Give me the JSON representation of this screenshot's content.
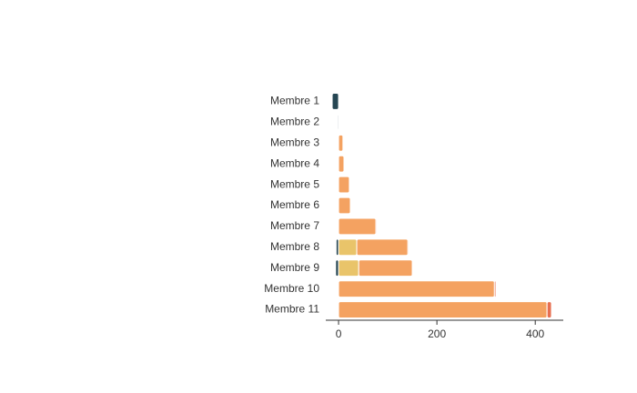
{
  "chart_data": {
    "type": "bar",
    "orientation": "horizontal",
    "stacked": true,
    "categories": [
      "Membre 1",
      "Membre 2",
      "Membre 3",
      "Membre 4",
      "Membre 5",
      "Membre 6",
      "Membre 7",
      "Membre 8",
      "Membre 9",
      "Membre 10",
      "Membre 11"
    ],
    "series": [
      {
        "color": "#264653",
        "values": [
          -13,
          -2,
          0,
          0,
          0,
          0,
          0,
          -5,
          -6,
          0,
          0
        ]
      },
      {
        "color": "#e9c46a",
        "values": [
          0,
          0,
          0,
          0,
          0,
          0,
          0,
          37,
          41,
          0,
          0
        ]
      },
      {
        "color": "#f4a261",
        "values": [
          0,
          0,
          9,
          11,
          22,
          24,
          76,
          104,
          109,
          317,
          424
        ]
      },
      {
        "color": "#e76f51",
        "values": [
          0,
          0,
          1,
          1,
          1,
          1,
          2,
          2,
          1,
          3,
          9
        ]
      }
    ],
    "xlim": [
      -26,
      457
    ],
    "xticks": [
      0,
      200,
      400
    ]
  }
}
